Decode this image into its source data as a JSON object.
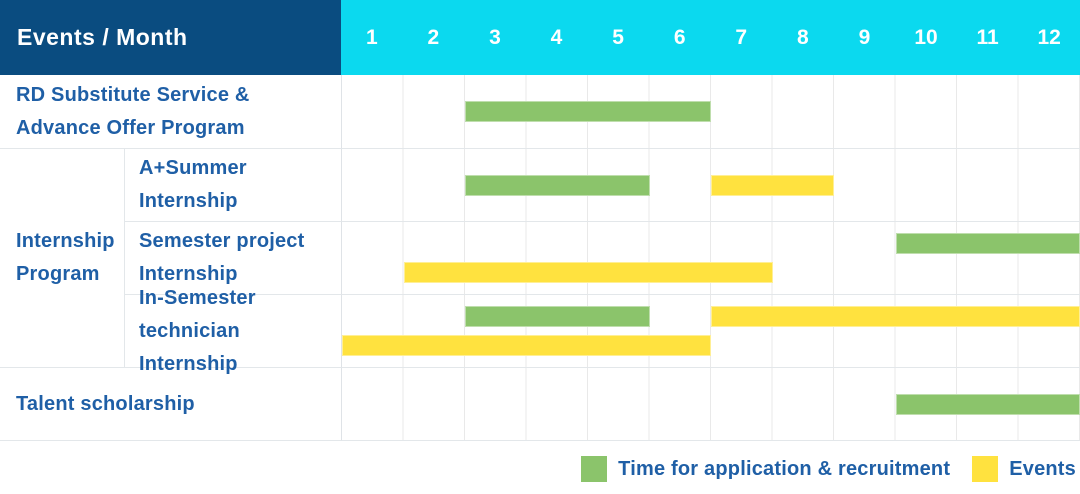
{
  "header": {
    "title": "Events / Month",
    "months": [
      "1",
      "2",
      "3",
      "4",
      "5",
      "6",
      "7",
      "8",
      "9",
      "10",
      "11",
      "12"
    ]
  },
  "colors": {
    "navy": "#0a4c80",
    "cyan": "#0bd9ef",
    "green": "#8bc46b",
    "yellow": "#ffe23f",
    "label_text": "#1f5fa6"
  },
  "chart_data": {
    "type": "gantt",
    "title": "Events / Month",
    "x_axis": {
      "label": "Month",
      "ticks": [
        1,
        2,
        3,
        4,
        5,
        6,
        7,
        8,
        9,
        10,
        11,
        12
      ],
      "range": [
        1,
        12
      ]
    },
    "grid": true,
    "group": {
      "label": "Internship\nProgram",
      "member_rows": [
        1,
        2,
        3
      ]
    },
    "rows": [
      {
        "id": "rd-substitute-service",
        "label": "RD Substitute Service &\nAdvance Offer Program",
        "lines": 1,
        "bars": [
          {
            "type": "application",
            "start": 3,
            "end": 6,
            "line": 0
          }
        ]
      },
      {
        "id": "a-plus-summer-internship",
        "label": "A+Summer\nInternship",
        "lines": 1,
        "bars": [
          {
            "type": "application",
            "start": 3,
            "end": 5,
            "line": 0
          },
          {
            "type": "event",
            "start": 7,
            "end": 8,
            "line": 0
          }
        ]
      },
      {
        "id": "semester-project-internship",
        "label": "Semester project\nInternship",
        "lines": 2,
        "bars": [
          {
            "type": "application",
            "start": 10,
            "end": 12,
            "line": 0
          },
          {
            "type": "event",
            "start": 2,
            "end": 7,
            "line": 1
          }
        ]
      },
      {
        "id": "in-semester-technician-internship",
        "label": "In-Semester\ntechnician Internship",
        "lines": 2,
        "bars": [
          {
            "type": "application",
            "start": 3,
            "end": 5,
            "line": 0
          },
          {
            "type": "event",
            "start": 7,
            "end": 12,
            "line": 0
          },
          {
            "type": "event",
            "start": 1,
            "end": 6,
            "line": 1
          }
        ]
      },
      {
        "id": "talent-scholarship",
        "label": "Talent scholarship",
        "lines": 1,
        "bars": [
          {
            "type": "application",
            "start": 10,
            "end": 12,
            "line": 0
          }
        ]
      }
    ]
  },
  "legend": {
    "items": [
      {
        "key": "application",
        "label": "Time for application & recruitment",
        "color": "#8bc46b"
      },
      {
        "key": "event",
        "label": "Events",
        "color": "#ffe23f"
      }
    ]
  }
}
